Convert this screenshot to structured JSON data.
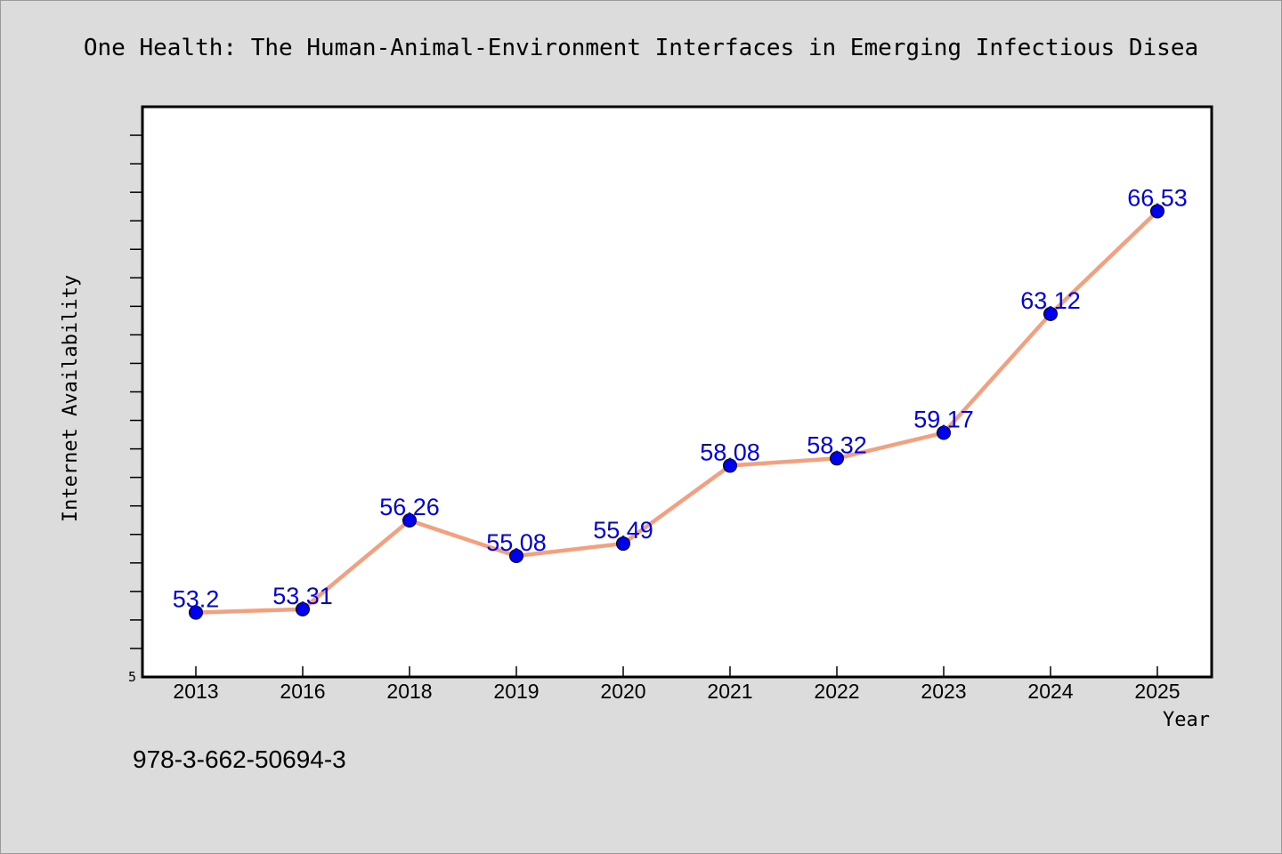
{
  "chart_data": {
    "type": "line",
    "title": "One Health: The Human-Animal-Environment Interfaces in Emerging Infectious Disea",
    "xlabel": "Year",
    "ylabel": "Internet Availability",
    "categories": [
      "2013",
      "2016",
      "2018",
      "2019",
      "2020",
      "2021",
      "2022",
      "2023",
      "2024",
      "2025"
    ],
    "series": [
      {
        "values": [
          53.2,
          53.31,
          56.26,
          55.08,
          55.49,
          58.08,
          58.32,
          59.17,
          63.12,
          66.53
        ],
        "data_labels": [
          "53.2",
          "53.31",
          "56.26",
          "55.08",
          "55.49",
          "58.08",
          "58.32",
          "59.17",
          "63.12",
          "66.53"
        ]
      }
    ],
    "ytick_labels": [
      "5"
    ],
    "ylim": [
      51.06,
      70.0
    ],
    "grid": false,
    "legend": "none",
    "footnote": "978-3-662-50694-3",
    "colors": {
      "background": "#dcdcdc",
      "plot_area": "#ffffff",
      "line": "#f4a07e",
      "marker": "#0000ee",
      "data_label": "#0000ee"
    }
  }
}
